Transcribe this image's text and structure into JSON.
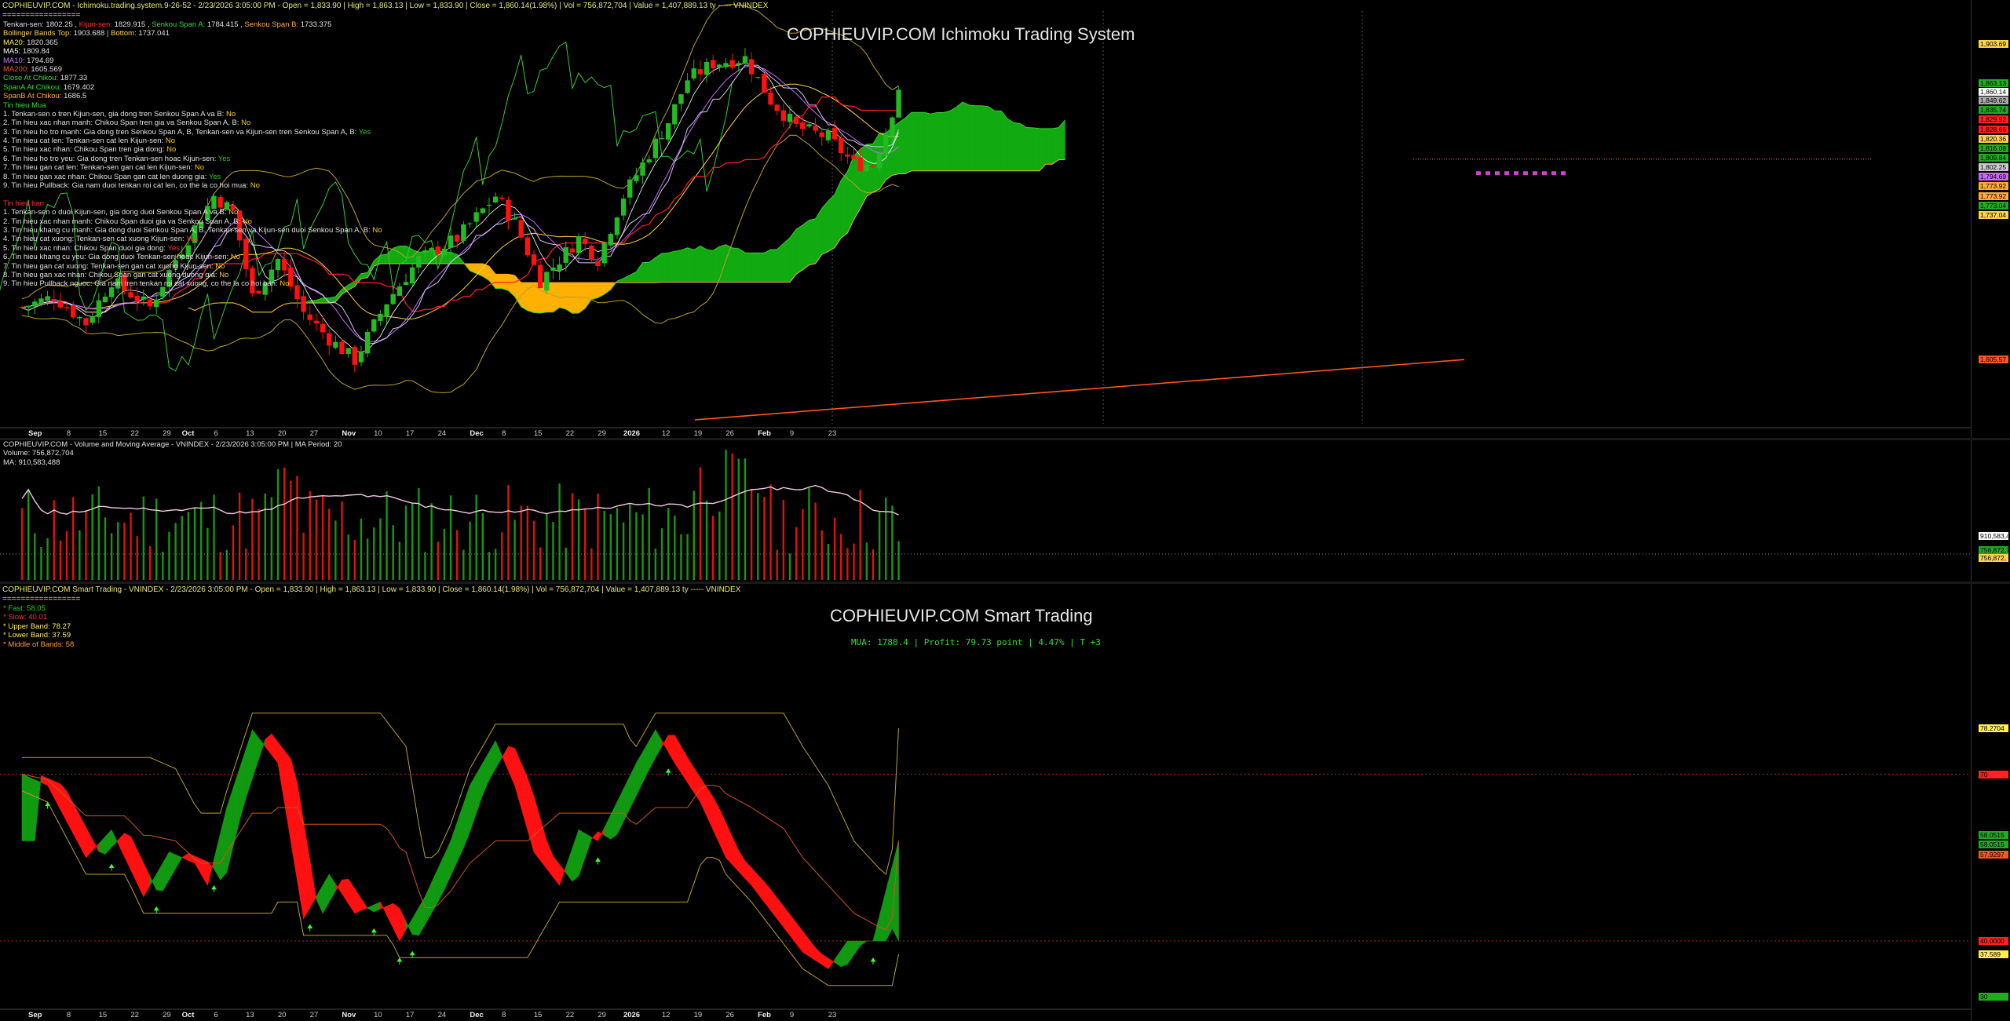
{
  "pane1": {
    "header": {
      "prefix": "COPHIEUVIP.COM - Ichimoku.trading.system.9-26-52 - 2/23/2026 3:05:00 PM - Open = 1,833.90 | High = 1,863.13 | Low = 1,833.90 | Close = 1,860.14(1.98%) | Vol = 756,872,704 | Value = 1,407,889.13 ty",
      "suffix": "----- VNINDEX",
      "sep": "================="
    },
    "title": "COPHIEUVIP.COM Ichimoku Trading System",
    "info_lines": [
      {
        "parts": [
          {
            "t": "Tenkan-sen: ",
            "c": "#e0e0e0"
          },
          {
            "t": "1802.25",
            "c": "#e0e0e0"
          },
          {
            "t": " , ",
            "c": "#e0e0e0"
          },
          {
            "t": "Kijun-sen: ",
            "c": "#ff3030"
          },
          {
            "t": "1829.915",
            "c": "#e0e0e0"
          },
          {
            "t": " , ",
            "c": "#e0e0e0"
          },
          {
            "t": "Senkou Span A: ",
            "c": "#33dd33"
          },
          {
            "t": "1784.415",
            "c": "#e0e0e0"
          },
          {
            "t": " , ",
            "c": "#e0e0e0"
          },
          {
            "t": "Senkou Span B: ",
            "c": "#ffaa33"
          },
          {
            "t": "1733.375",
            "c": "#e0e0e0"
          }
        ]
      },
      {
        "parts": [
          {
            "t": "Bollinger Bands Top: ",
            "c": "#ffd24a"
          },
          {
            "t": "1903.688",
            "c": "#e0e0e0"
          },
          {
            "t": " | Bottom: ",
            "c": "#ffd24a"
          },
          {
            "t": "1737.041",
            "c": "#e0e0e0"
          }
        ]
      },
      {
        "parts": [
          {
            "t": "MA20: ",
            "c": "#ffee55"
          },
          {
            "t": "1820.365",
            "c": "#e0e0e0"
          }
        ]
      },
      {
        "parts": [
          {
            "t": "MA5: ",
            "c": "#ffffff"
          },
          {
            "t": "1809.84",
            "c": "#e0e0e0"
          }
        ]
      },
      {
        "parts": [
          {
            "t": "MA10: ",
            "c": "#cc77ff"
          },
          {
            "t": "1794.69",
            "c": "#e0e0e0"
          }
        ]
      },
      {
        "parts": [
          {
            "t": "MA200: ",
            "c": "#ff5522"
          },
          {
            "t": "1605.569",
            "c": "#e0e0e0"
          }
        ]
      },
      {
        "parts": [
          {
            "t": "Close At Chikou: ",
            "c": "#33dd33"
          },
          {
            "t": "1877.33",
            "c": "#e0e0e0"
          }
        ]
      },
      {
        "parts": [
          {
            "t": "SpanA At Chikou: ",
            "c": "#33dd33"
          },
          {
            "t": "1679.402",
            "c": "#e0e0e0"
          }
        ]
      },
      {
        "parts": [
          {
            "t": "SpanB At Chikou: ",
            "c": "#ffaa33"
          },
          {
            "t": "1686.5",
            "c": "#e0e0e0"
          }
        ]
      },
      {
        "parts": [
          {
            "t": "Tin hieu Mua",
            "c": "#33dd33"
          }
        ]
      },
      {
        "parts": [
          {
            "t": "1. Tenkan-sen o tren Kijun-sen, gia dong tren Senkou Span A va B: ",
            "c": "#e0e0e0"
          },
          {
            "t": "No",
            "c": "#ffd000"
          }
        ]
      },
      {
        "parts": [
          {
            "t": "2. Tin hieu xac nhan manh: Chikou Span tren gia va Senkou Span A, B: ",
            "c": "#e0e0e0"
          },
          {
            "t": "No",
            "c": "#ffd000"
          }
        ]
      },
      {
        "parts": [
          {
            "t": "3. Tin hieu ho tro manh: Gia dong tren Senkou Span A, B, Tenkan-sen va Kijun-sen tren Senkou Span A, B: ",
            "c": "#e0e0e0"
          },
          {
            "t": "Yes",
            "c": "#22cc22"
          }
        ]
      },
      {
        "parts": [
          {
            "t": "4. Tin hieu cat len: Tenkan-sen cat len Kijun-sen: ",
            "c": "#e0e0e0"
          },
          {
            "t": "No",
            "c": "#ffd000"
          }
        ]
      },
      {
        "parts": [
          {
            "t": "5. Tin hieu xac nhan: Chikou Span tren gia dong: ",
            "c": "#e0e0e0"
          },
          {
            "t": "No",
            "c": "#ffd000"
          }
        ]
      },
      {
        "parts": [
          {
            "t": "6. Tin hieu ho tro yeu: Gia dong tren Tenkan-sen hoac Kijun-sen: ",
            "c": "#e0e0e0"
          },
          {
            "t": "Yes",
            "c": "#22cc22"
          }
        ]
      },
      {
        "parts": [
          {
            "t": "7. Tin hieu gan cat len: Tenkan-sen gan cat len Kijun-sen: ",
            "c": "#e0e0e0"
          },
          {
            "t": "No",
            "c": "#ffd000"
          }
        ]
      },
      {
        "parts": [
          {
            "t": "8. Tin hieu gan xac nhan: Chikou Span gan cat len duong gia: ",
            "c": "#e0e0e0"
          },
          {
            "t": "Yes",
            "c": "#22cc22"
          }
        ]
      },
      {
        "parts": [
          {
            "t": "9. Tin hieu Pullback: Gia nam duoi tenkan roi cat len, co the la co hoi mua: ",
            "c": "#e0e0e0"
          },
          {
            "t": "No",
            "c": "#ffd000"
          }
        ]
      },
      {
        "parts": [
          {
            "t": "",
            "c": "#e0e0e0"
          }
        ]
      },
      {
        "parts": [
          {
            "t": "Tin hieu ban",
            "c": "#ff3030"
          }
        ]
      },
      {
        "parts": [
          {
            "t": "1. Tenkan-sen o duoi Kijun-sen, gia dong duoi Senkou Span A va B: ",
            "c": "#e0e0e0"
          },
          {
            "t": "No",
            "c": "#ffd000"
          }
        ]
      },
      {
        "parts": [
          {
            "t": "2. Tin hieu xac nhan manh: Chikou Span duoi gia va Senkou Span A, B: ",
            "c": "#e0e0e0"
          },
          {
            "t": "No",
            "c": "#ffd000"
          }
        ]
      },
      {
        "parts": [
          {
            "t": "3. Tin hieu khang cu manh: Gia dong duoi Senkou Span A, B, Tenkan-sen va Kijun-sen duoi Senkou Span A, B: ",
            "c": "#e0e0e0"
          },
          {
            "t": "No",
            "c": "#ffd000"
          }
        ]
      },
      {
        "parts": [
          {
            "t": "4. Tin hieu cat xuong: Tenkan-sen cat xuong Kijun-sen: ",
            "c": "#e0e0e0"
          },
          {
            "t": "Yes",
            "c": "#ff3030"
          }
        ]
      },
      {
        "parts": [
          {
            "t": "5. Tin hieu xac nhan: Chikou Span duoi gia dong: ",
            "c": "#e0e0e0"
          },
          {
            "t": "Yes",
            "c": "#ff3030"
          }
        ]
      },
      {
        "parts": [
          {
            "t": "6. Tin hieu khang cu yeu: Gia dong duoi Tenkan-sen hoac Kijun-sen: ",
            "c": "#e0e0e0"
          },
          {
            "t": "No",
            "c": "#ffd000"
          }
        ]
      },
      {
        "parts": [
          {
            "t": "7. Tin hieu gan cat xuong: Tenkan-sen gan cat xuong Kijun-sen: ",
            "c": "#e0e0e0"
          },
          {
            "t": "No",
            "c": "#ffd000"
          }
        ]
      },
      {
        "parts": [
          {
            "t": "8. Tin hieu gan xac nhan: Chikou Span gan cat xuong duong gia: ",
            "c": "#e0e0e0"
          },
          {
            "t": "No",
            "c": "#ffd000"
          }
        ]
      },
      {
        "parts": [
          {
            "t": "9. Tin hieu Pullback nguoc: Gia nam tren tenkan roi cat xuong, co the la co hoi ban: ",
            "c": "#e0e0e0"
          },
          {
            "t": "No",
            "c": "#ffd000"
          }
        ]
      }
    ],
    "price_labels": [
      {
        "v": "1,903.69",
        "bg": "#ffd24a",
        "y": 1903.69
      },
      {
        "v": "1,863.13",
        "bg": "#22aa22",
        "y": 1866
      },
      {
        "v": "1,860.14",
        "bg": "#ffffff",
        "y": 1858
      },
      {
        "v": "1,849.62",
        "bg": "#aaaaaa",
        "y": 1850
      },
      {
        "v": "1,835.74",
        "bg": "#22aa22",
        "y": 1841
      },
      {
        "v": "1,829.92",
        "bg": "#ff2222",
        "y": 1832
      },
      {
        "v": "1,828.66",
        "bg": "#ff2222",
        "y": 1823
      },
      {
        "v": "1,820.36",
        "bg": "#ffd24a",
        "y": 1814
      },
      {
        "v": "1,816.08",
        "bg": "#22aa22",
        "y": 1805
      },
      {
        "v": "1,809.84",
        "bg": "#22aa22",
        "y": 1796
      },
      {
        "v": "1,802.25",
        "bg": "#cccccc",
        "y": 1787
      },
      {
        "v": "1,794.69",
        "bg": "#cc66ff",
        "y": 1778
      },
      {
        "v": "1,773.92",
        "bg": "#ffaa33",
        "y": 1769
      },
      {
        "v": "1,773.92",
        "bg": "#ffaa33",
        "y": 1760
      },
      {
        "v": "1,773.04",
        "bg": "#22aa22",
        "y": 1751
      },
      {
        "v": "1,737.04",
        "bg": "#ffd24a",
        "y": 1742
      },
      {
        "v": "1,605.57",
        "bg": "#ff5522",
        "y": 1605.57
      }
    ]
  },
  "pane2": {
    "header": "COPHIEUVIP.COM - Volume and Moving Average - VNINDEX - 2/23/2026 3:05:00 PM | MA Period: 20",
    "volume": "Volume: 756,872,704",
    "ma": "MA: 910,583,488",
    "labels": [
      {
        "v": "910,583,4",
        "bg": "#ffffff"
      },
      {
        "v": "756,872,7",
        "bg": "#22aa22"
      },
      {
        "v": "756,872,",
        "bg": "#ffd24a"
      }
    ]
  },
  "pane3": {
    "header": {
      "prefix": "COPHIEUVIP.COM Smart Trading - VNINDEX - 2/23/2026 3:05:00 PM - Open = 1,833.90 | High = 1,863.13 | Low = 1,833.90 | Close = 1,860.14(1.98%) | Vol = 756,872,704 | Value = 1,407,889.13 ty",
      "suffix": "----- VNINDEX",
      "sep": "================="
    },
    "title": "COPHIEUVIP.COM Smart Trading",
    "subtitle": "MUA:  1780.4  |  Profit: 79.73 point  |  4.47%  |  T +3",
    "info_lines": [
      {
        "parts": [
          {
            "t": "* Fast: ",
            "c": "#22cc22"
          },
          {
            "t": "58.05",
            "c": "#22cc22"
          }
        ]
      },
      {
        "parts": [
          {
            "t": "* Slow: ",
            "c": "#ff3030"
          },
          {
            "t": "40.01",
            "c": "#ff3030"
          }
        ]
      },
      {
        "parts": [
          {
            "t": "* Upper Band: ",
            "c": "#ffee55"
          },
          {
            "t": "78.27",
            "c": "#ffee55"
          }
        ]
      },
      {
        "parts": [
          {
            "t": "* Lower Band: ",
            "c": "#ffee55"
          },
          {
            "t": "37.59",
            "c": "#ffee55"
          }
        ]
      },
      {
        "parts": [
          {
            "t": "* Middle of Bands: ",
            "c": "#ff9933"
          },
          {
            "t": "58",
            "c": "#ff9933"
          }
        ]
      }
    ],
    "labels": [
      {
        "v": "78.2704",
        "bg": "#ffee55",
        "val": 78.27
      },
      {
        "v": "70",
        "bg": "#ff2222",
        "val": 70
      },
      {
        "v": "58.0515",
        "bg": "#22aa22",
        "val": 59.0
      },
      {
        "v": "58.0515",
        "bg": "#22aa22",
        "val": 57.3
      },
      {
        "v": "57.9297",
        "bg": "#ff5522",
        "val": 55.6
      },
      {
        "v": "40.0000",
        "bg": "#ff2222",
        "val": 40
      },
      {
        "v": "37.589",
        "bg": "#ffee55",
        "val": 37.59
      },
      {
        "v": "30",
        "bg": "#22aa22",
        "val": 30
      }
    ]
  },
  "axis": {
    "labels": [
      {
        "t": "Sep",
        "b": true
      },
      {
        "t": "8"
      },
      {
        "t": "15"
      },
      {
        "t": "22"
      },
      {
        "t": "29"
      },
      {
        "t": "Oct",
        "b": true
      },
      {
        "t": "6"
      },
      {
        "t": "13"
      },
      {
        "t": "20"
      },
      {
        "t": "27"
      },
      {
        "t": "Nov",
        "b": true
      },
      {
        "t": "10"
      },
      {
        "t": "17"
      },
      {
        "t": "24"
      },
      {
        "t": "Dec",
        "b": true
      },
      {
        "t": "8"
      },
      {
        "t": "15"
      },
      {
        "t": "22"
      },
      {
        "t": "29"
      },
      {
        "t": "2026",
        "b": true
      },
      {
        "t": "12"
      },
      {
        "t": "19"
      },
      {
        "t": "26"
      },
      {
        "t": "Feb",
        "b": true
      },
      {
        "t": "9"
      },
      {
        "t": "23"
      }
    ]
  },
  "colors": {
    "bull": "#22bb22",
    "bear": "#ff1111",
    "cloud_bull": "#11aa11",
    "cloud_bear": "#ffb000",
    "ma200": "#ff5522",
    "bb": "#b8a030",
    "chikou": "#33cc33",
    "tenkan": "#cccccc",
    "kijun": "#ff2222",
    "ma10": "#cc66ff",
    "ma20": "#ffd24a"
  }
}
